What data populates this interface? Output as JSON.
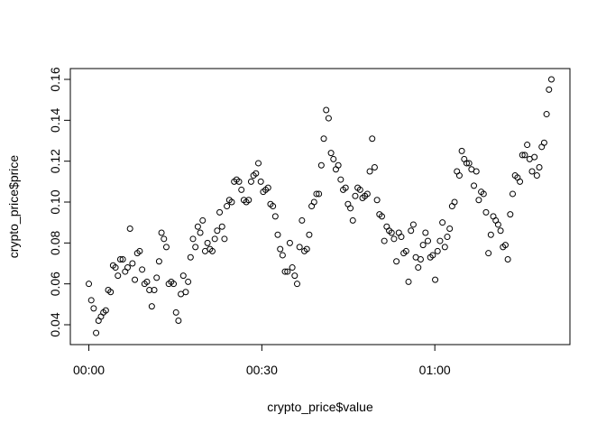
{
  "chart_data": {
    "type": "scatter",
    "x_label": "crypto_price$value",
    "y_label": "crypto_price$price",
    "x": [
      0,
      0.42,
      0.84,
      1.26,
      1.68,
      2.1,
      2.52,
      2.94,
      3.36,
      3.78,
      4.2,
      4.62,
      5.04,
      5.46,
      5.88,
      6.3,
      6.72,
      7.14,
      7.56,
      7.98,
      8.4,
      8.82,
      9.24,
      9.66,
      10.08,
      10.5,
      10.92,
      11.34,
      11.76,
      12.18,
      12.6,
      13.02,
      13.44,
      13.86,
      14.28,
      14.7,
      15.12,
      15.54,
      15.96,
      16.38,
      16.8,
      17.22,
      17.64,
      18.06,
      18.48,
      18.9,
      19.32,
      19.74,
      20.16,
      20.58,
      21,
      21.42,
      21.84,
      22.26,
      22.68,
      23.1,
      23.52,
      23.94,
      24.36,
      24.78,
      25.2,
      25.62,
      26.04,
      26.46,
      26.88,
      27.3,
      27.72,
      28.14,
      28.56,
      28.98,
      29.4,
      29.82,
      30.24,
      30.66,
      31.08,
      31.5,
      31.92,
      32.34,
      32.76,
      33.18,
      33.6,
      34.02,
      34.44,
      34.86,
      35.28,
      35.7,
      36.12,
      36.54,
      36.96,
      37.38,
      37.8,
      38.22,
      38.64,
      39.06,
      39.48,
      39.9,
      40.32,
      40.74,
      41.16,
      41.58,
      42,
      42.42,
      42.84,
      43.26,
      43.68,
      44.1,
      44.52,
      44.94,
      45.36,
      45.78,
      46.2,
      46.62,
      47.04,
      47.46,
      47.88,
      48.3,
      48.72,
      49.14,
      49.56,
      49.98,
      50.4,
      50.82,
      51.24,
      51.66,
      52.08,
      52.5,
      52.92,
      53.34,
      53.76,
      54.18,
      54.6,
      55.02,
      55.44,
      55.86,
      56.28,
      56.7,
      57.12,
      57.54,
      57.96,
      58.38,
      58.8,
      59.22,
      59.64,
      60.06,
      60.48,
      60.9,
      61.32,
      61.74,
      62.16,
      62.58,
      63,
      63.42,
      63.84,
      64.26,
      64.68,
      65.1,
      65.52,
      65.94,
      66.36,
      66.78,
      67.2,
      67.62,
      68.04,
      68.46,
      68.88,
      69.3,
      69.72,
      70.14,
      70.56,
      70.98,
      71.4,
      71.82,
      72.24,
      72.66,
      73.08,
      73.5,
      73.92,
      74.34,
      74.76,
      75.18,
      75.6,
      76.02,
      76.44,
      76.86,
      77.28,
      77.7,
      78.12,
      78.54,
      78.96,
      79.38,
      79.8,
      80.22
    ],
    "values": [
      0.06,
      0.052,
      0.048,
      0.036,
      0.042,
      0.044,
      0.046,
      0.047,
      0.057,
      0.056,
      0.069,
      0.068,
      0.064,
      0.072,
      0.072,
      0.066,
      0.068,
      0.087,
      0.07,
      0.062,
      0.075,
      0.076,
      0.067,
      0.06,
      0.061,
      0.057,
      0.049,
      0.057,
      0.063,
      0.071,
      0.085,
      0.082,
      0.078,
      0.06,
      0.061,
      0.06,
      0.046,
      0.042,
      0.055,
      0.064,
      0.056,
      0.061,
      0.073,
      0.082,
      0.078,
      0.088,
      0.085,
      0.091,
      0.076,
      0.08,
      0.077,
      0.076,
      0.082,
      0.086,
      0.095,
      0.088,
      0.082,
      0.098,
      0.101,
      0.1,
      0.11,
      0.111,
      0.11,
      0.106,
      0.101,
      0.1,
      0.101,
      0.11,
      0.113,
      0.114,
      0.119,
      0.11,
      0.105,
      0.106,
      0.107,
      0.099,
      0.098,
      0.093,
      0.084,
      0.077,
      0.074,
      0.066,
      0.066,
      0.08,
      0.068,
      0.064,
      0.06,
      0.078,
      0.091,
      0.076,
      0.077,
      0.084,
      0.098,
      0.1,
      0.104,
      0.104,
      0.118,
      0.131,
      0.145,
      0.141,
      0.124,
      0.121,
      0.116,
      0.118,
      0.111,
      0.106,
      0.107,
      0.099,
      0.097,
      0.091,
      0.103,
      0.107,
      0.106,
      0.102,
      0.103,
      0.104,
      0.115,
      0.131,
      0.117,
      0.101,
      0.094,
      0.093,
      0.081,
      0.088,
      0.086,
      0.085,
      0.082,
      0.071,
      0.085,
      0.083,
      0.075,
      0.076,
      0.061,
      0.086,
      0.089,
      0.073,
      0.068,
      0.072,
      0.079,
      0.085,
      0.081,
      0.073,
      0.074,
      0.062,
      0.076,
      0.081,
      0.09,
      0.078,
      0.083,
      0.087,
      0.098,
      0.1,
      0.115,
      0.113,
      0.125,
      0.121,
      0.119,
      0.119,
      0.116,
      0.108,
      0.115,
      0.101,
      0.105,
      0.104,
      0.095,
      0.075,
      0.084,
      0.093,
      0.091,
      0.089,
      0.086,
      0.078,
      0.079,
      0.072,
      0.094,
      0.104,
      0.113,
      0.112,
      0.11,
      0.123,
      0.123,
      0.128,
      0.121,
      0.115,
      0.122,
      0.113,
      0.117,
      0.127,
      0.129,
      0.143,
      0.155,
      0.16
    ],
    "color": "#000000",
    "xlim": [
      -3.21,
      83.43
    ],
    "xticks": [
      {
        "value": 0,
        "label": "00:00"
      },
      {
        "value": 30,
        "label": "00:30"
      },
      {
        "value": 60,
        "label": "01:00"
      }
    ],
    "ylim": [
      0.0303,
      0.1653
    ],
    "yticks": [
      {
        "value": 0.04,
        "label": "0.04"
      },
      {
        "value": 0.06,
        "label": "0.06"
      },
      {
        "value": 0.08,
        "label": "0.08"
      },
      {
        "value": 0.1,
        "label": "0.10"
      },
      {
        "value": 0.12,
        "label": "0.12"
      },
      {
        "value": 0.14,
        "label": "0.14"
      },
      {
        "value": 0.16,
        "label": "0.16"
      }
    ]
  }
}
